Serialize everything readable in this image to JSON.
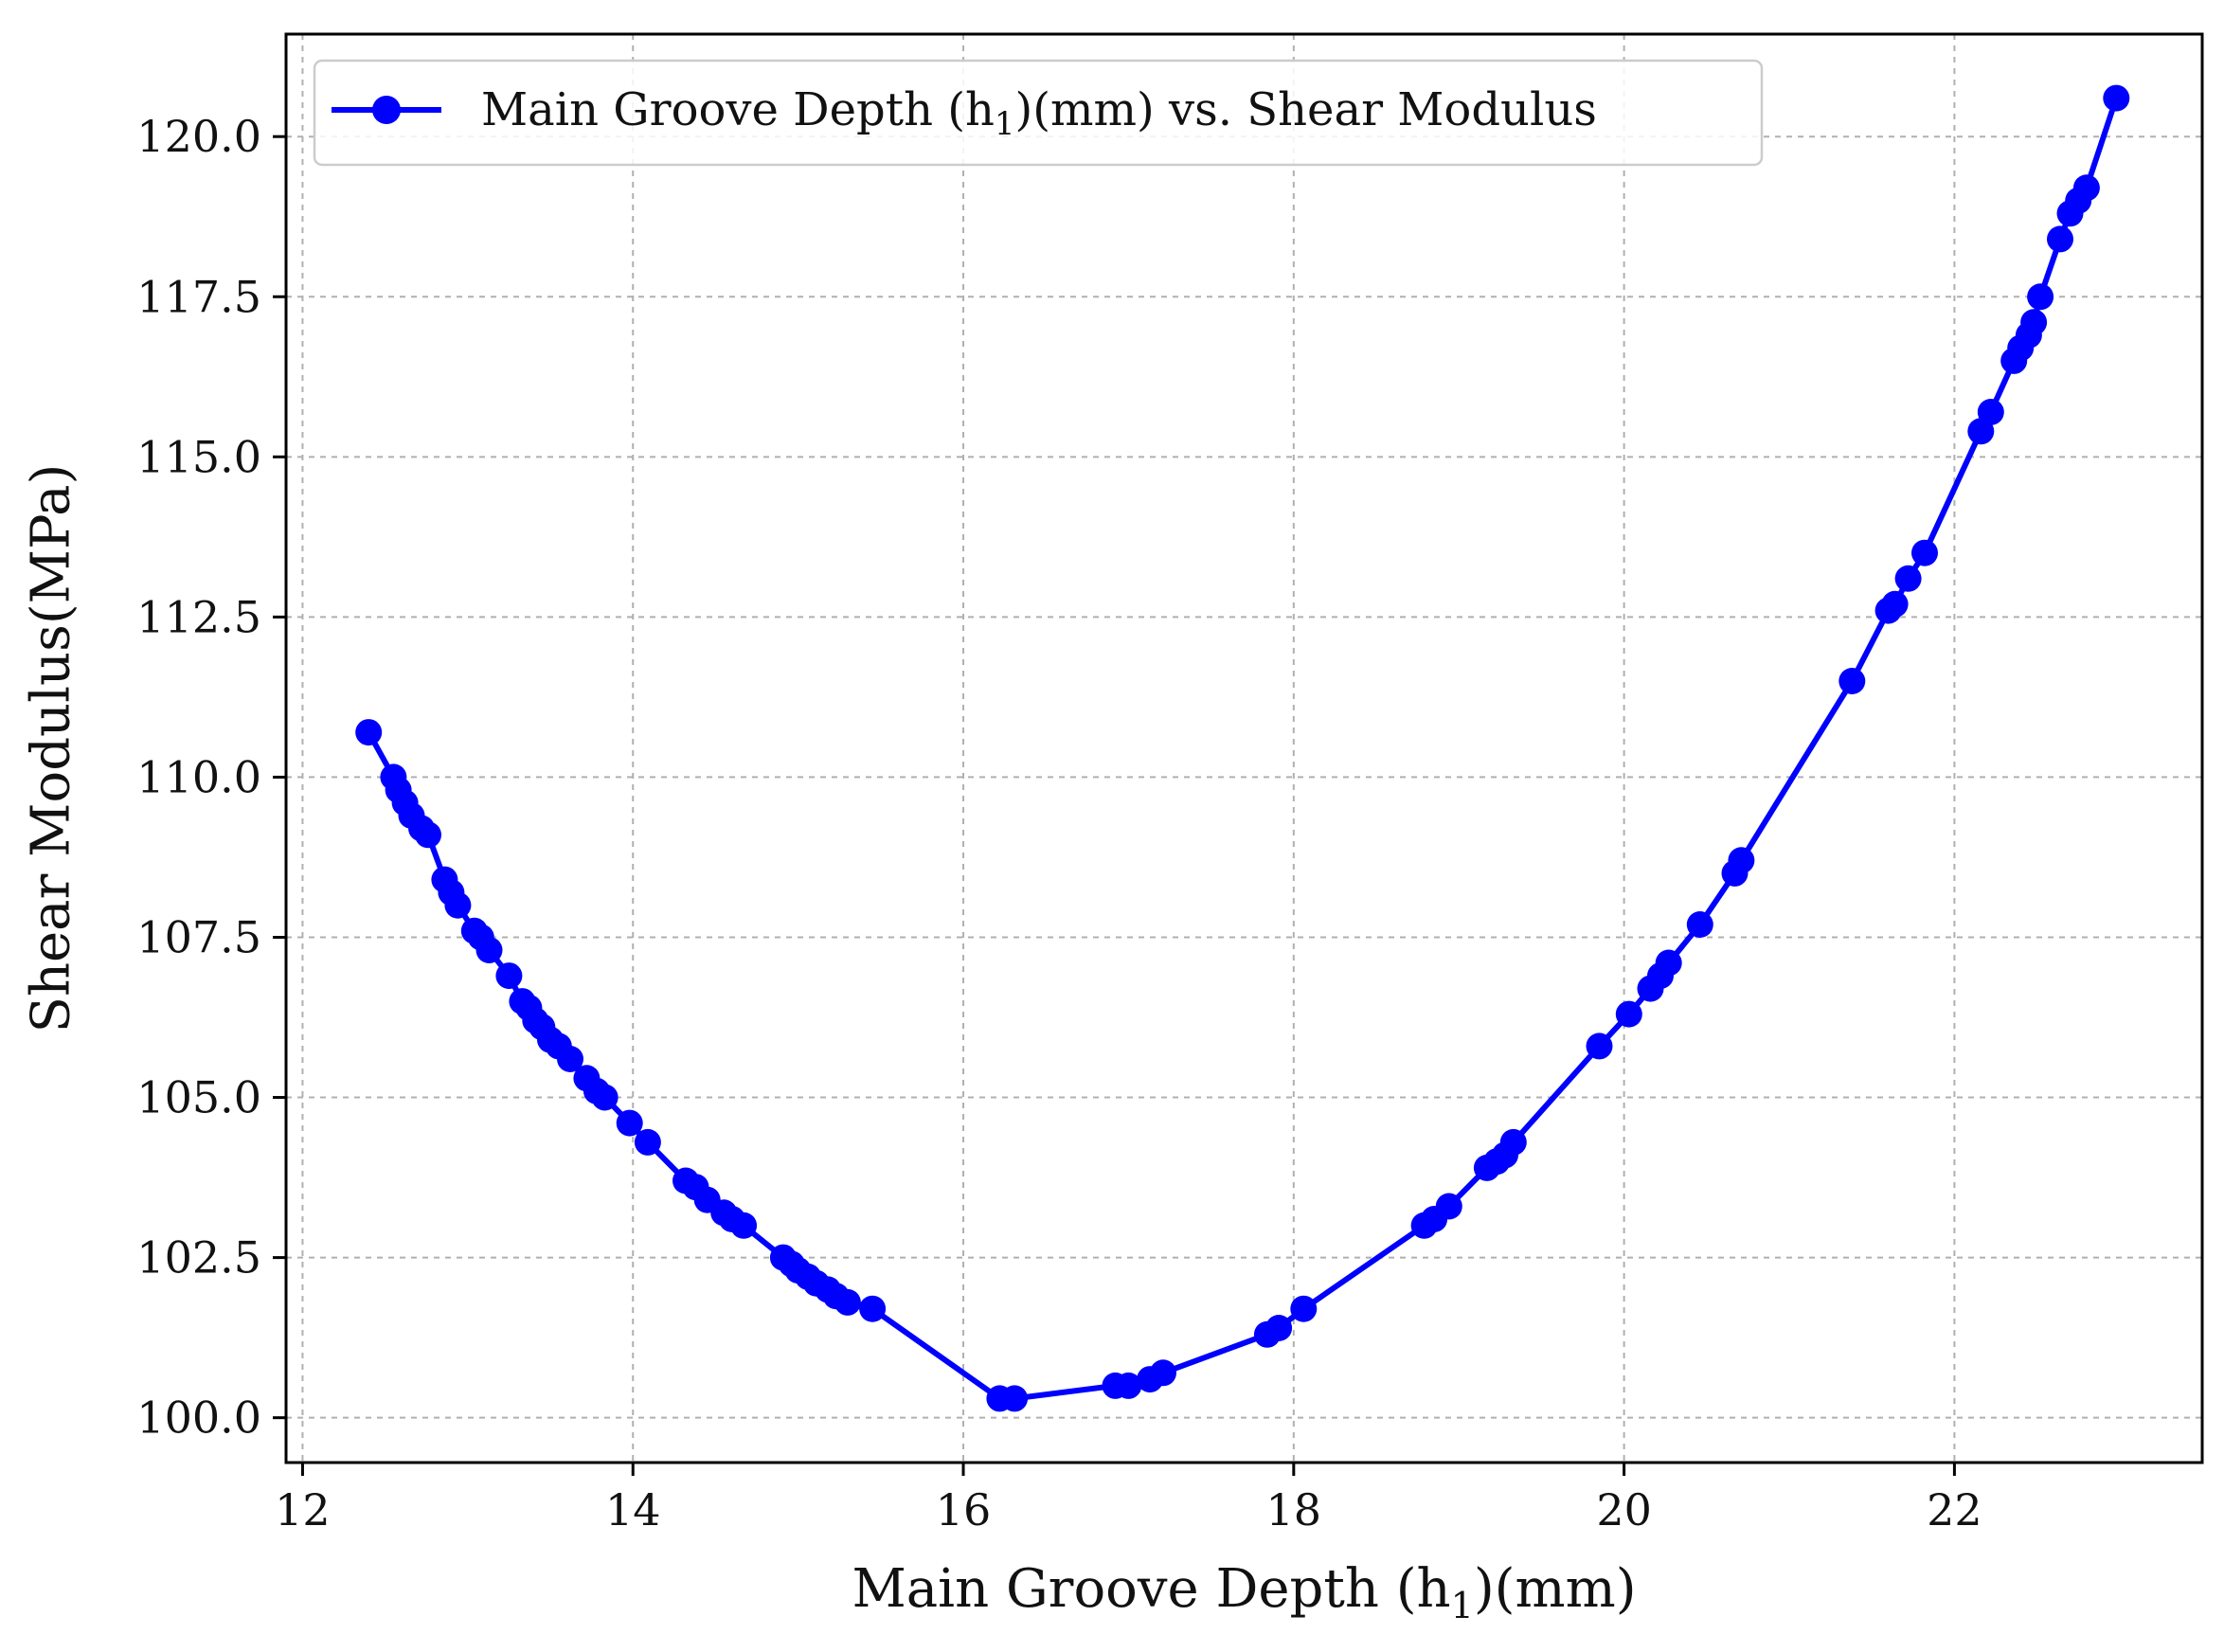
{
  "chart_data": {
    "type": "line",
    "title": "",
    "xlabel": {
      "base": "Main Groove Depth (h",
      "sub": "1",
      "tail": ")(mm)"
    },
    "ylabel": "Shear Modulus(MPa)",
    "xlim": [
      11.9,
      23.5
    ],
    "ylim": [
      99.3,
      121.6
    ],
    "xticks": [
      12,
      14,
      16,
      18,
      20,
      22
    ],
    "xtick_labels": [
      "12",
      "14",
      "16",
      "18",
      "20",
      "22"
    ],
    "yticks": [
      100.0,
      102.5,
      105.0,
      107.5,
      110.0,
      112.5,
      115.0,
      117.5,
      120.0
    ],
    "ytick_labels": [
      "100.0",
      "102.5",
      "105.0",
      "107.5",
      "110.0",
      "112.5",
      "115.0",
      "117.5",
      "120.0"
    ],
    "grid": true,
    "legend_position": "top-left",
    "series": [
      {
        "name": {
          "base": "Main Groove Depth (h",
          "sub": "1",
          "tail": ")(mm) vs. Shear Modulus"
        },
        "color": "#0000ff",
        "marker": "circle",
        "x": [
          12.4,
          12.55,
          12.58,
          12.62,
          12.66,
          12.72,
          12.76,
          12.86,
          12.9,
          12.94,
          13.04,
          13.08,
          13.13,
          13.25,
          13.33,
          13.37,
          13.41,
          13.45,
          13.5,
          13.55,
          13.62,
          13.72,
          13.78,
          13.83,
          13.98,
          14.09,
          14.32,
          14.38,
          14.45,
          14.55,
          14.6,
          14.67,
          14.91,
          14.96,
          15.0,
          15.06,
          15.11,
          15.18,
          15.23,
          15.3,
          15.45,
          16.22,
          16.31,
          16.92,
          17.0,
          17.13,
          17.21,
          17.84,
          17.91,
          18.06,
          18.79,
          18.85,
          18.94,
          19.17,
          19.23,
          19.28,
          19.33,
          19.85,
          20.03,
          20.16,
          20.22,
          20.27,
          20.46,
          20.67,
          20.71,
          21.38,
          21.6,
          21.64,
          21.72,
          21.82,
          22.16,
          22.22,
          22.36,
          22.4,
          22.45,
          22.48,
          22.52,
          22.64,
          22.7,
          22.75,
          22.8,
          22.98
        ],
        "y": [
          110.7,
          110.0,
          109.8,
          109.6,
          109.4,
          109.2,
          109.1,
          108.4,
          108.2,
          108.0,
          107.6,
          107.5,
          107.3,
          106.9,
          106.5,
          106.4,
          106.2,
          106.1,
          105.9,
          105.8,
          105.6,
          105.3,
          105.1,
          105.0,
          104.6,
          104.3,
          103.7,
          103.6,
          103.4,
          103.2,
          103.1,
          103.0,
          102.5,
          102.4,
          102.3,
          102.2,
          102.1,
          102.0,
          101.9,
          101.8,
          101.7,
          100.3,
          100.3,
          100.5,
          100.5,
          100.6,
          100.7,
          101.3,
          101.4,
          101.7,
          103.0,
          103.1,
          103.3,
          103.9,
          104.0,
          104.1,
          104.3,
          105.8,
          106.3,
          106.7,
          106.9,
          107.1,
          107.7,
          108.5,
          108.7,
          111.5,
          112.6,
          112.7,
          113.1,
          113.5,
          115.4,
          115.7,
          116.5,
          116.7,
          116.9,
          117.1,
          117.5,
          118.4,
          118.8,
          119.0,
          119.2,
          120.6
        ]
      }
    ]
  }
}
